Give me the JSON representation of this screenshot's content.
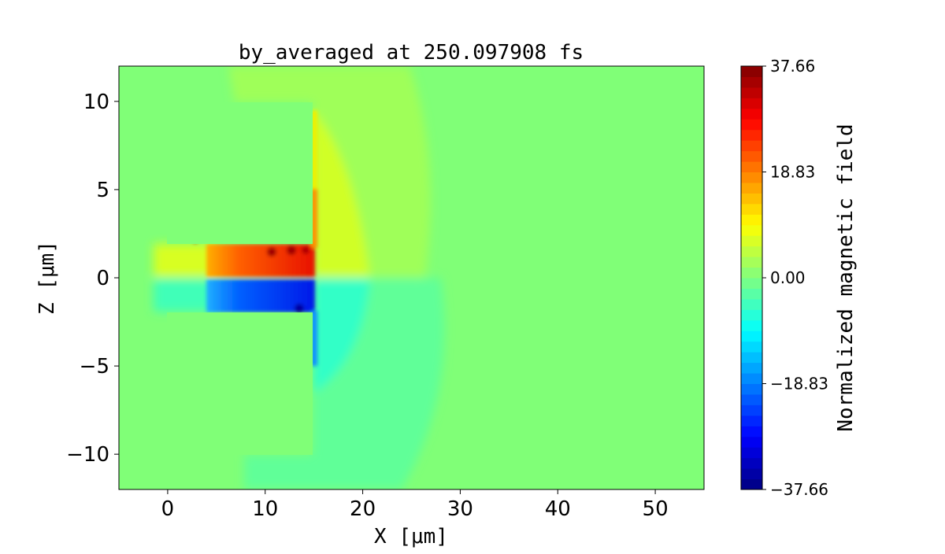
{
  "chart_data": {
    "type": "heatmap",
    "title": "by_averaged at 250.097908 fs",
    "xlabel": "X [$\\mu m$]",
    "xlabel_display": "X [μm]",
    "ylabel_display": "Z [μm]",
    "xlim": [
      -5,
      55
    ],
    "ylim": [
      -12,
      12
    ],
    "xticks": [
      0,
      10,
      20,
      30,
      40,
      50
    ],
    "yticks": [
      -10,
      -5,
      0,
      5,
      10
    ],
    "xtick_labels": [
      "0",
      "10",
      "20",
      "30",
      "40",
      "50"
    ],
    "ytick_labels": [
      "−10",
      "−5",
      "0",
      "5",
      "10"
    ],
    "colormap": "jet",
    "colorbar": {
      "label": "Normalized magnetic field",
      "range": [
        -37.66,
        37.66
      ],
      "ticks": [
        -37.66,
        -18.83,
        0.0,
        18.83,
        37.66
      ],
      "tick_labels": [
        "−37.66",
        "−18.83",
        "0.00",
        "18.83",
        "37.66"
      ],
      "levels": 40
    },
    "features": [
      {
        "name": "target upper block",
        "x": [
          0,
          15
        ],
        "z": [
          1.9,
          10
        ],
        "value": 0
      },
      {
        "name": "target lower block",
        "x": [
          0,
          15
        ],
        "z": [
          -10,
          -1.9
        ],
        "value": 0
      },
      {
        "name": "positive field channel",
        "x": [
          4,
          15
        ],
        "z": [
          0,
          1.9
        ],
        "peak": 37
      },
      {
        "name": "negative field channel",
        "x": [
          4,
          15
        ],
        "z": [
          -1.9,
          0
        ],
        "peak": -35
      }
    ]
  }
}
